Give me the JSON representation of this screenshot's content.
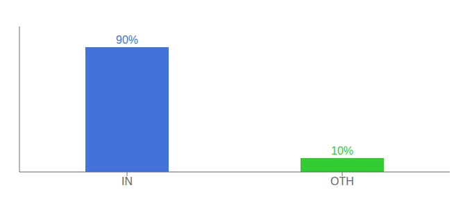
{
  "chart_data": {
    "type": "bar",
    "categories": [
      "IN",
      "OTH"
    ],
    "values": [
      90,
      10
    ],
    "value_labels": [
      "90%",
      "10%"
    ],
    "colors": [
      "#4472db",
      "#33cc33"
    ],
    "ylim": [
      0,
      105
    ],
    "grid": false,
    "data_labels": true,
    "tick_labels": "x"
  }
}
